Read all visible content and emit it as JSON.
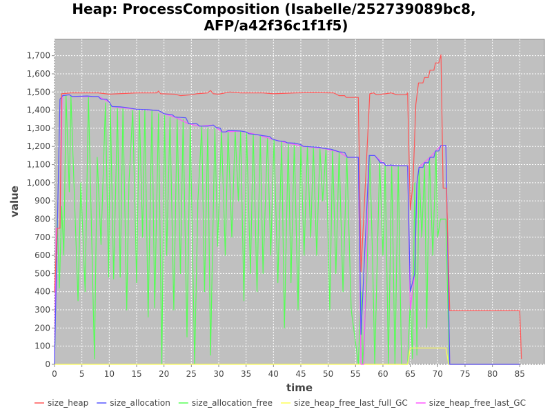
{
  "chart_data": {
    "type": "line",
    "title": "Heap: ProcessComposition (Isabelle/252739089bc8,",
    "title_line2": "AFP/a42f36c1f1f5)",
    "xlabel": "time",
    "ylabel": "value",
    "xlim": [
      0,
      89.5
    ],
    "ylim": [
      0,
      1790
    ],
    "xticks": [
      0,
      5,
      10,
      15,
      20,
      25,
      30,
      35,
      40,
      45,
      50,
      55,
      60,
      65,
      70,
      75,
      80,
      85
    ],
    "yticks": [
      0,
      100,
      200,
      300,
      400,
      500,
      600,
      700,
      800,
      900,
      1000,
      1100,
      1200,
      1300,
      1400,
      1500,
      1600,
      1700
    ],
    "ytick_labels": [
      "0",
      "100",
      "200",
      "300",
      "400",
      "500",
      "600",
      "700",
      "800",
      "900",
      "1,000",
      "1,100",
      "1,200",
      "1,300",
      "1,400",
      "1,500",
      "1,600",
      "1,700"
    ],
    "grid": true,
    "legend_position": "bottom",
    "series": [
      {
        "name": "size_heap",
        "color": "#ff5555",
        "points": [
          [
            0,
            400
          ],
          [
            0.5,
            750
          ],
          [
            1,
            750
          ],
          [
            1.3,
            1490
          ],
          [
            3,
            1495
          ],
          [
            8,
            1495
          ],
          [
            10,
            1488
          ],
          [
            15,
            1495
          ],
          [
            18.7,
            1495
          ],
          [
            19,
            1505
          ],
          [
            19.4,
            1490
          ],
          [
            22,
            1488
          ],
          [
            23,
            1480
          ],
          [
            25,
            1485
          ],
          [
            26,
            1490
          ],
          [
            28,
            1495
          ],
          [
            28.5,
            1508
          ],
          [
            29,
            1490
          ],
          [
            30,
            1488
          ],
          [
            32,
            1500
          ],
          [
            34,
            1495
          ],
          [
            38,
            1495
          ],
          [
            40,
            1490
          ],
          [
            44,
            1495
          ],
          [
            47,
            1497
          ],
          [
            51,
            1495
          ],
          [
            52,
            1480
          ],
          [
            53,
            1480
          ],
          [
            53.3,
            1470
          ],
          [
            55.5,
            1470
          ],
          [
            56,
            510
          ],
          [
            56.8,
            1000
          ],
          [
            57.6,
            1490
          ],
          [
            58.3,
            1495
          ],
          [
            58.8,
            1485
          ],
          [
            60.5,
            1490
          ],
          [
            61.5,
            1495
          ],
          [
            62.5,
            1485
          ],
          [
            64.3,
            1485
          ],
          [
            64.5,
            1495
          ],
          [
            65,
            850
          ],
          [
            65.5,
            1000
          ],
          [
            66,
            1430
          ],
          [
            66.5,
            1550
          ],
          [
            67.3,
            1550
          ],
          [
            67.6,
            1580
          ],
          [
            68.3,
            1580
          ],
          [
            68.6,
            1620
          ],
          [
            69.3,
            1620
          ],
          [
            69.6,
            1660
          ],
          [
            70.2,
            1660
          ],
          [
            70.6,
            1705
          ],
          [
            71,
            970
          ],
          [
            71.6,
            970
          ],
          [
            72.2,
            295
          ],
          [
            85,
            295
          ],
          [
            85.3,
            30
          ]
        ]
      },
      {
        "name": "size_allocation",
        "color": "#5555ff",
        "points": [
          [
            0,
            0
          ],
          [
            1,
            1460
          ],
          [
            1.5,
            1480
          ],
          [
            2.7,
            1485
          ],
          [
            3.2,
            1475
          ],
          [
            6,
            1478
          ],
          [
            7,
            1475
          ],
          [
            8,
            1475
          ],
          [
            8.5,
            1460
          ],
          [
            9.5,
            1460
          ],
          [
            10,
            1445
          ],
          [
            10.5,
            1420
          ],
          [
            12,
            1418
          ],
          [
            13,
            1415
          ],
          [
            15,
            1405
          ],
          [
            17,
            1403
          ],
          [
            18,
            1400
          ],
          [
            19,
            1398
          ],
          [
            19.5,
            1390
          ],
          [
            20,
            1380
          ],
          [
            21.5,
            1375
          ],
          [
            22,
            1362
          ],
          [
            24,
            1358
          ],
          [
            24.5,
            1325
          ],
          [
            26,
            1325
          ],
          [
            26.5,
            1312
          ],
          [
            28,
            1312
          ],
          [
            29,
            1318
          ],
          [
            29.5,
            1305
          ],
          [
            30.3,
            1300
          ],
          [
            30.6,
            1280
          ],
          [
            31.3,
            1280
          ],
          [
            31.7,
            1288
          ],
          [
            34,
            1285
          ],
          [
            35,
            1280
          ],
          [
            35.5,
            1270
          ],
          [
            37,
            1265
          ],
          [
            38,
            1260
          ],
          [
            39.3,
            1255
          ],
          [
            39.8,
            1240
          ],
          [
            41,
            1230
          ],
          [
            42,
            1228
          ],
          [
            42.5,
            1220
          ],
          [
            44,
            1218
          ],
          [
            45,
            1210
          ],
          [
            45.5,
            1200
          ],
          [
            47,
            1198
          ],
          [
            48.5,
            1195
          ],
          [
            49,
            1190
          ],
          [
            50.5,
            1185
          ],
          [
            51,
            1180
          ],
          [
            52,
            1170
          ],
          [
            53,
            1168
          ],
          [
            53.5,
            1140
          ],
          [
            55.5,
            1140
          ],
          [
            56,
            165
          ],
          [
            56.8,
            700
          ],
          [
            57.5,
            1150
          ],
          [
            58.5,
            1150
          ],
          [
            59.2,
            1125
          ],
          [
            59.5,
            1110
          ],
          [
            60.2,
            1110
          ],
          [
            60.5,
            1095
          ],
          [
            61.5,
            1098
          ],
          [
            62.5,
            1093
          ],
          [
            64.5,
            1093
          ],
          [
            65,
            400
          ],
          [
            65.8,
            500
          ],
          [
            66.2,
            1000
          ],
          [
            66.6,
            1085
          ],
          [
            67.3,
            1085
          ],
          [
            67.6,
            1110
          ],
          [
            68.3,
            1110
          ],
          [
            68.6,
            1140
          ],
          [
            69.3,
            1140
          ],
          [
            69.6,
            1175
          ],
          [
            70.2,
            1175
          ],
          [
            70.6,
            1205
          ],
          [
            71.5,
            1205
          ],
          [
            72.2,
            0
          ],
          [
            85,
            0
          ]
        ]
      },
      {
        "name": "size_allocation_free",
        "color": "#55ff55",
        "points": [
          [
            0,
            0
          ],
          [
            0.5,
            800
          ],
          [
            0.9,
            420
          ],
          [
            1.3,
            870
          ],
          [
            1.7,
            600
          ],
          [
            2.1,
            1480
          ],
          [
            2.7,
            950
          ],
          [
            3,
            1475
          ],
          [
            4.3,
            350
          ],
          [
            4.8,
            1000
          ],
          [
            5.6,
            400
          ],
          [
            6.2,
            1475
          ],
          [
            7.3,
            30
          ],
          [
            7.8,
            1140
          ],
          [
            8.5,
            660
          ],
          [
            9.3,
            1440
          ],
          [
            9.9,
            480
          ],
          [
            10.2,
            1430
          ],
          [
            10.8,
            470
          ],
          [
            11.5,
            1410
          ],
          [
            12,
            480
          ],
          [
            12.5,
            1410
          ],
          [
            13.2,
            300
          ],
          [
            13.6,
            1000
          ],
          [
            14.3,
            1400
          ],
          [
            15,
            450
          ],
          [
            15.5,
            1400
          ],
          [
            16.1,
            700
          ],
          [
            16.5,
            1400
          ],
          [
            17.1,
            260
          ],
          [
            17.8,
            1400
          ],
          [
            18.3,
            310
          ],
          [
            19,
            1380
          ],
          [
            19.6,
            0
          ],
          [
            20.1,
            1370
          ],
          [
            20.5,
            600
          ],
          [
            21.1,
            1360
          ],
          [
            21.8,
            300
          ],
          [
            22.4,
            1360
          ],
          [
            23,
            500
          ],
          [
            23.5,
            1350
          ],
          [
            24.2,
            150
          ],
          [
            24.8,
            1325
          ],
          [
            25.6,
            0
          ],
          [
            26.2,
            900
          ],
          [
            26.9,
            1310
          ],
          [
            27.4,
            400
          ],
          [
            28,
            1300
          ],
          [
            28.5,
            50
          ],
          [
            29.3,
            1300
          ],
          [
            29.8,
            650
          ],
          [
            30.5,
            1290
          ],
          [
            31.2,
            600
          ],
          [
            31.7,
            1285
          ],
          [
            32.4,
            700
          ],
          [
            33,
            1285
          ],
          [
            33.6,
            900
          ],
          [
            34,
            1285
          ],
          [
            34.6,
            350
          ],
          [
            35.1,
            1280
          ],
          [
            35.8,
            500
          ],
          [
            36.3,
            1270
          ],
          [
            37,
            400
          ],
          [
            37.6,
            1260
          ],
          [
            38.1,
            500
          ],
          [
            38.9,
            1250
          ],
          [
            39.5,
            600
          ],
          [
            40.1,
            1240
          ],
          [
            40.8,
            450
          ],
          [
            41.5,
            1230
          ],
          [
            42,
            200
          ],
          [
            42.7,
            1220
          ],
          [
            43.2,
            450
          ],
          [
            43.8,
            1220
          ],
          [
            44.5,
            300
          ],
          [
            45,
            1210
          ],
          [
            45.6,
            600
          ],
          [
            46.2,
            1200
          ],
          [
            46.8,
            700
          ],
          [
            47.3,
            1200
          ],
          [
            47.9,
            600
          ],
          [
            48.5,
            1190
          ],
          [
            49,
            900
          ],
          [
            49.6,
            1190
          ],
          [
            50.3,
            300
          ],
          [
            50.8,
            1185
          ],
          [
            51.4,
            500
          ],
          [
            52,
            1170
          ],
          [
            52.7,
            400
          ],
          [
            53.4,
            1150
          ],
          [
            54.2,
            300
          ],
          [
            55,
            120
          ],
          [
            55.5,
            0
          ],
          [
            56,
            400
          ],
          [
            56.3,
            0
          ],
          [
            57,
            400
          ],
          [
            57.6,
            1150
          ],
          [
            58.1,
            600
          ],
          [
            58.5,
            0
          ],
          [
            59.4,
            1120
          ],
          [
            60,
            600
          ],
          [
            60.4,
            1100
          ],
          [
            61,
            0
          ],
          [
            61.6,
            1095
          ],
          [
            62.2,
            0
          ],
          [
            62.8,
            1095
          ],
          [
            63.4,
            0
          ],
          [
            64.5,
            0
          ],
          [
            65,
            350
          ],
          [
            65.4,
            30
          ],
          [
            65.8,
            1000
          ],
          [
            66.2,
            50
          ],
          [
            66.6,
            1085
          ],
          [
            67.1,
            700
          ],
          [
            67.6,
            1100
          ],
          [
            68,
            200
          ],
          [
            68.5,
            1140
          ],
          [
            69.1,
            600
          ],
          [
            69.7,
            1170
          ],
          [
            70,
            700
          ],
          [
            70.5,
            800
          ],
          [
            71.5,
            800
          ],
          [
            72.1,
            0
          ],
          [
            85,
            0
          ]
        ]
      },
      {
        "name": "size_heap_free_last_full_GC",
        "color": "#ffff55",
        "points": [
          [
            0,
            0
          ],
          [
            64.5,
            0
          ],
          [
            65,
            90
          ],
          [
            71.5,
            90
          ],
          [
            72,
            0
          ],
          [
            85,
            0
          ]
        ]
      },
      {
        "name": "size_heap_free_last_GC",
        "color": "#ff55ff",
        "points": [
          [
            0,
            0
          ],
          [
            0.3,
            750
          ],
          [
            1,
            750
          ],
          [
            1.4,
            1480
          ],
          [
            2.7,
            1485
          ],
          [
            3.2,
            1475
          ],
          [
            8,
            1475
          ],
          [
            10,
            1445
          ],
          [
            10.5,
            1420
          ],
          [
            15,
            1405
          ],
          [
            19,
            1398
          ],
          [
            20,
            1380
          ],
          [
            22,
            1362
          ],
          [
            24.5,
            1325
          ],
          [
            26.5,
            1312
          ],
          [
            29,
            1318
          ],
          [
            30.6,
            1280
          ],
          [
            34,
            1285
          ],
          [
            37,
            1265
          ],
          [
            39.8,
            1240
          ],
          [
            42.5,
            1220
          ],
          [
            45.5,
            1200
          ],
          [
            49,
            1190
          ],
          [
            52,
            1170
          ],
          [
            53.5,
            1140
          ],
          [
            55.5,
            1140
          ],
          [
            56,
            0
          ],
          [
            56.5,
            0
          ],
          [
            57.5,
            1150
          ],
          [
            58.5,
            1150
          ],
          [
            60.5,
            1095
          ],
          [
            64.5,
            1093
          ],
          [
            65,
            300
          ],
          [
            65.8,
            500
          ],
          [
            66.2,
            1000
          ],
          [
            66.6,
            1085
          ],
          [
            68.6,
            1140
          ],
          [
            70.6,
            1205
          ],
          [
            71.5,
            1205
          ],
          [
            72.2,
            0
          ],
          [
            85,
            0
          ]
        ]
      }
    ]
  }
}
